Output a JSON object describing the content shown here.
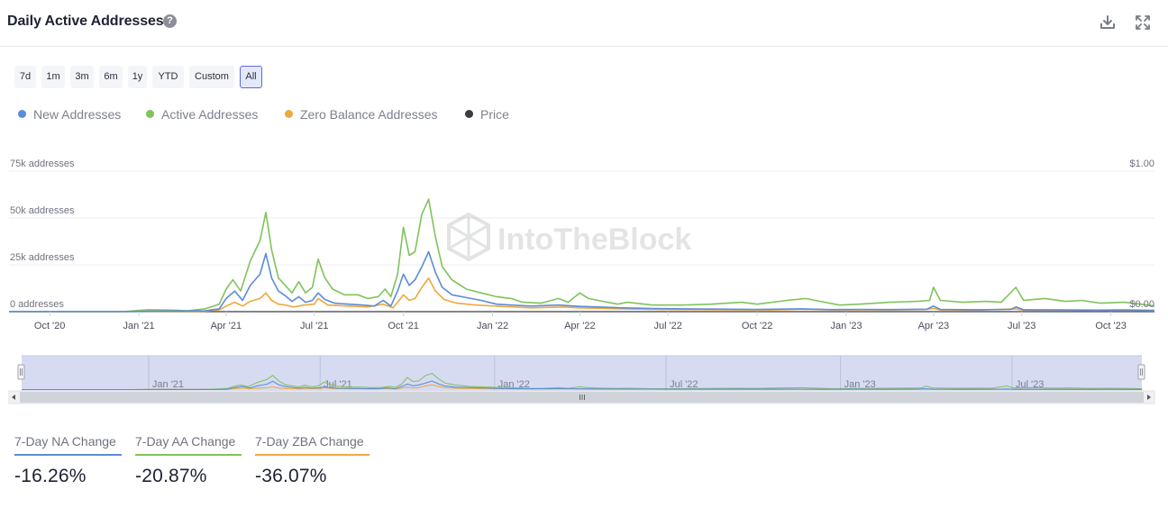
{
  "header": {
    "title": "Daily Active Addresses",
    "help_glyph": "?",
    "download_icon": "download-icon",
    "expand_icon": "expand-icon"
  },
  "range_buttons": [
    {
      "label": "7d",
      "active": false
    },
    {
      "label": "1m",
      "active": false
    },
    {
      "label": "3m",
      "active": false
    },
    {
      "label": "6m",
      "active": false
    },
    {
      "label": "1y",
      "active": false
    },
    {
      "label": "YTD",
      "active": false
    },
    {
      "label": "Custom",
      "active": false
    },
    {
      "label": "All",
      "active": true
    }
  ],
  "legend": [
    {
      "label": "New Addresses",
      "color": "#5b8bd9"
    },
    {
      "label": "Active Addresses",
      "color": "#7fc35a"
    },
    {
      "label": "Zero Balance Addresses",
      "color": "#f0a83c"
    },
    {
      "label": "Price",
      "color": "#3a3c44"
    }
  ],
  "watermark": "IntoTheBlock",
  "chart_data": {
    "type": "line",
    "title": "Daily Active Addresses",
    "y_left_ticks": [
      "0 addresses",
      "25k addresses",
      "50k addresses",
      "75k addresses"
    ],
    "y_left_range": [
      0,
      75000
    ],
    "y_right_ticks": [
      "$0.00",
      "$1.00"
    ],
    "y_right_range": [
      0,
      1
    ],
    "x_range": [
      "2020-08-20",
      "2023-11-15"
    ],
    "x_ticks": [
      {
        "date": "2020-10-01",
        "label": "Oct '20"
      },
      {
        "date": "2021-01-01",
        "label": "Jan '21"
      },
      {
        "date": "2021-04-01",
        "label": "Apr '21"
      },
      {
        "date": "2021-07-01",
        "label": "Jul '21"
      },
      {
        "date": "2021-10-01",
        "label": "Oct '21"
      },
      {
        "date": "2022-01-01",
        "label": "Jan '22"
      },
      {
        "date": "2022-04-01",
        "label": "Apr '22"
      },
      {
        "date": "2022-07-01",
        "label": "Jul '22"
      },
      {
        "date": "2022-10-01",
        "label": "Oct '22"
      },
      {
        "date": "2023-01-01",
        "label": "Jan '23"
      },
      {
        "date": "2023-04-01",
        "label": "Apr '23"
      },
      {
        "date": "2023-07-01",
        "label": "Jul '23"
      },
      {
        "date": "2023-10-01",
        "label": "Oct '23"
      }
    ],
    "grid": true,
    "legend_position": "top-left",
    "series": [
      {
        "name": "New Addresses",
        "color": "#5b8bd9",
        "axis": "left",
        "points": [
          [
            "2020-08-20",
            0
          ],
          [
            "2020-12-15",
            0
          ],
          [
            "2021-01-15",
            200
          ],
          [
            "2021-02-15",
            400
          ],
          [
            "2021-03-10",
            500
          ],
          [
            "2021-03-25",
            1500
          ],
          [
            "2021-04-01",
            7000
          ],
          [
            "2021-04-10",
            11000
          ],
          [
            "2021-04-18",
            6000
          ],
          [
            "2021-04-26",
            14000
          ],
          [
            "2021-05-06",
            20000
          ],
          [
            "2021-05-12",
            31000
          ],
          [
            "2021-05-18",
            18000
          ],
          [
            "2021-05-25",
            11000
          ],
          [
            "2021-06-01",
            8500
          ],
          [
            "2021-06-08",
            5500
          ],
          [
            "2021-06-15",
            8000
          ],
          [
            "2021-06-22",
            5000
          ],
          [
            "2021-06-29",
            6000
          ],
          [
            "2021-07-05",
            10000
          ],
          [
            "2021-07-12",
            6500
          ],
          [
            "2021-07-22",
            4500
          ],
          [
            "2021-08-05",
            4000
          ],
          [
            "2021-08-20",
            3500
          ],
          [
            "2021-09-01",
            3000
          ],
          [
            "2021-09-10",
            6000
          ],
          [
            "2021-09-18",
            3000
          ],
          [
            "2021-09-25",
            11000
          ],
          [
            "2021-10-01",
            20000
          ],
          [
            "2021-10-07",
            14000
          ],
          [
            "2021-10-13",
            17000
          ],
          [
            "2021-10-20",
            24000
          ],
          [
            "2021-10-27",
            32000
          ],
          [
            "2021-11-03",
            21000
          ],
          [
            "2021-11-10",
            13000
          ],
          [
            "2021-11-20",
            9000
          ],
          [
            "2021-12-05",
            7500
          ],
          [
            "2021-12-20",
            6000
          ],
          [
            "2022-01-05",
            4000
          ],
          [
            "2022-01-20",
            3500
          ],
          [
            "2022-02-10",
            3000
          ],
          [
            "2022-03-10",
            3500
          ],
          [
            "2022-04-01",
            2800
          ],
          [
            "2022-04-20",
            2500
          ],
          [
            "2022-05-15",
            2000
          ],
          [
            "2022-06-15",
            1700
          ],
          [
            "2022-07-15",
            1500
          ],
          [
            "2022-09-01",
            1300
          ],
          [
            "2022-10-01",
            1200
          ],
          [
            "2022-11-15",
            1500
          ],
          [
            "2022-12-15",
            1100
          ],
          [
            "2023-01-15",
            1200
          ],
          [
            "2023-02-15",
            1100
          ],
          [
            "2023-03-25",
            1300
          ],
          [
            "2023-04-01",
            3000
          ],
          [
            "2023-04-08",
            1200
          ],
          [
            "2023-05-15",
            1000
          ],
          [
            "2023-06-20",
            1200
          ],
          [
            "2023-06-25",
            2500
          ],
          [
            "2023-07-03",
            1000
          ],
          [
            "2023-08-15",
            900
          ],
          [
            "2023-09-15",
            800
          ],
          [
            "2023-10-15",
            900
          ],
          [
            "2023-11-15",
            700
          ]
        ]
      },
      {
        "name": "Active Addresses",
        "color": "#7fc35a",
        "axis": "left",
        "points": [
          [
            "2020-08-20",
            0
          ],
          [
            "2020-12-15",
            0
          ],
          [
            "2021-01-10",
            1000
          ],
          [
            "2021-02-05",
            800
          ],
          [
            "2021-02-20",
            500
          ],
          [
            "2021-03-10",
            1500
          ],
          [
            "2021-03-25",
            4000
          ],
          [
            "2021-04-01",
            12000
          ],
          [
            "2021-04-08",
            17000
          ],
          [
            "2021-04-16",
            11000
          ],
          [
            "2021-04-26",
            27000
          ],
          [
            "2021-05-06",
            38000
          ],
          [
            "2021-05-12",
            53000
          ],
          [
            "2021-05-18",
            33000
          ],
          [
            "2021-05-25",
            18000
          ],
          [
            "2021-06-01",
            14000
          ],
          [
            "2021-06-08",
            10000
          ],
          [
            "2021-06-15",
            16000
          ],
          [
            "2021-06-22",
            10000
          ],
          [
            "2021-06-29",
            13000
          ],
          [
            "2021-07-05",
            28000
          ],
          [
            "2021-07-12",
            18000
          ],
          [
            "2021-07-20",
            12000
          ],
          [
            "2021-08-01",
            9000
          ],
          [
            "2021-08-15",
            9000
          ],
          [
            "2021-08-25",
            7000
          ],
          [
            "2021-09-05",
            8000
          ],
          [
            "2021-09-12",
            12000
          ],
          [
            "2021-09-18",
            8000
          ],
          [
            "2021-09-25",
            20000
          ],
          [
            "2021-10-01",
            45000
          ],
          [
            "2021-10-07",
            30000
          ],
          [
            "2021-10-13",
            32000
          ],
          [
            "2021-10-20",
            52000
          ],
          [
            "2021-10-27",
            60000
          ],
          [
            "2021-11-03",
            40000
          ],
          [
            "2021-11-10",
            24000
          ],
          [
            "2021-11-20",
            17000
          ],
          [
            "2021-12-05",
            12000
          ],
          [
            "2021-12-20",
            10000
          ],
          [
            "2022-01-05",
            8000
          ],
          [
            "2022-01-20",
            7000
          ],
          [
            "2022-02-01",
            5000
          ],
          [
            "2022-02-20",
            4500
          ],
          [
            "2022-03-10",
            7000
          ],
          [
            "2022-03-20",
            5000
          ],
          [
            "2022-04-01",
            10000
          ],
          [
            "2022-04-10",
            7000
          ],
          [
            "2022-04-25",
            5500
          ],
          [
            "2022-05-10",
            4000
          ],
          [
            "2022-05-20",
            5000
          ],
          [
            "2022-06-15",
            3500
          ],
          [
            "2022-07-15",
            3500
          ],
          [
            "2022-08-15",
            4000
          ],
          [
            "2022-09-15",
            5000
          ],
          [
            "2022-10-01",
            4000
          ],
          [
            "2022-11-01",
            6000
          ],
          [
            "2022-11-20",
            7000
          ],
          [
            "2022-12-10",
            5000
          ],
          [
            "2022-12-25",
            3500
          ],
          [
            "2023-01-15",
            4000
          ],
          [
            "2023-02-15",
            5000
          ],
          [
            "2023-03-15",
            5500
          ],
          [
            "2023-03-28",
            6000
          ],
          [
            "2023-04-01",
            13000
          ],
          [
            "2023-04-08",
            6000
          ],
          [
            "2023-05-01",
            5000
          ],
          [
            "2023-05-25",
            5500
          ],
          [
            "2023-06-10",
            5000
          ],
          [
            "2023-06-25",
            13000
          ],
          [
            "2023-07-03",
            6000
          ],
          [
            "2023-07-25",
            7000
          ],
          [
            "2023-08-15",
            5500
          ],
          [
            "2023-09-01",
            6000
          ],
          [
            "2023-09-20",
            4500
          ],
          [
            "2023-10-15",
            5000
          ],
          [
            "2023-11-01",
            4000
          ],
          [
            "2023-11-15",
            3000
          ]
        ]
      },
      {
        "name": "Zero Balance Addresses",
        "color": "#f0a83c",
        "axis": "left",
        "points": [
          [
            "2020-08-20",
            0
          ],
          [
            "2020-12-15",
            0
          ],
          [
            "2021-01-15",
            200
          ],
          [
            "2021-03-10",
            300
          ],
          [
            "2021-03-25",
            1000
          ],
          [
            "2021-04-01",
            3000
          ],
          [
            "2021-04-10",
            5000
          ],
          [
            "2021-04-18",
            3000
          ],
          [
            "2021-04-26",
            5500
          ],
          [
            "2021-05-06",
            7000
          ],
          [
            "2021-05-12",
            10000
          ],
          [
            "2021-05-18",
            6000
          ],
          [
            "2021-05-25",
            4000
          ],
          [
            "2021-06-01",
            3500
          ],
          [
            "2021-06-10",
            2500
          ],
          [
            "2021-06-20",
            3500
          ],
          [
            "2021-07-01",
            4000
          ],
          [
            "2021-07-05",
            7000
          ],
          [
            "2021-07-15",
            3500
          ],
          [
            "2021-08-05",
            3000
          ],
          [
            "2021-08-25",
            2500
          ],
          [
            "2021-09-10",
            4000
          ],
          [
            "2021-09-20",
            2000
          ],
          [
            "2021-09-25",
            5000
          ],
          [
            "2021-10-01",
            9000
          ],
          [
            "2021-10-07",
            6000
          ],
          [
            "2021-10-13",
            7000
          ],
          [
            "2021-10-20",
            13000
          ],
          [
            "2021-10-27",
            18000
          ],
          [
            "2021-11-03",
            11000
          ],
          [
            "2021-11-12",
            6500
          ],
          [
            "2021-11-25",
            4500
          ],
          [
            "2021-12-15",
            3500
          ],
          [
            "2022-01-10",
            2800
          ],
          [
            "2022-02-10",
            2000
          ],
          [
            "2022-03-15",
            2500
          ],
          [
            "2022-04-01",
            2000
          ],
          [
            "2022-05-15",
            1500
          ],
          [
            "2022-06-15",
            1200
          ],
          [
            "2022-07-15",
            1100
          ],
          [
            "2022-09-15",
            1000
          ],
          [
            "2022-10-15",
            900
          ],
          [
            "2022-11-20",
            1300
          ],
          [
            "2022-12-20",
            900
          ],
          [
            "2023-01-15",
            1000
          ],
          [
            "2023-02-15",
            900
          ],
          [
            "2023-03-25",
            1200
          ],
          [
            "2023-04-01",
            1800
          ],
          [
            "2023-04-08",
            900
          ],
          [
            "2023-05-15",
            800
          ],
          [
            "2023-06-25",
            1500
          ],
          [
            "2023-07-03",
            800
          ],
          [
            "2023-08-15",
            700
          ],
          [
            "2023-09-15",
            600
          ],
          [
            "2023-10-15",
            700
          ],
          [
            "2023-11-15",
            500
          ]
        ]
      },
      {
        "name": "Price",
        "color": "#3a3c44",
        "axis": "right",
        "points": [
          [
            "2020-08-20",
            0
          ],
          [
            "2023-11-15",
            0
          ]
        ]
      }
    ]
  },
  "navigator": {
    "x_range": [
      "2020-08-20",
      "2023-11-15"
    ],
    "x_ticks": [
      {
        "date": "2021-01-01",
        "label": "Jan '21"
      },
      {
        "date": "2021-07-01",
        "label": "Jul '21"
      },
      {
        "date": "2022-01-01",
        "label": "Jan '22"
      },
      {
        "date": "2022-07-01",
        "label": "Jul '22"
      },
      {
        "date": "2023-01-01",
        "label": "Jan '23"
      },
      {
        "date": "2023-07-01",
        "label": "Jul '23"
      }
    ]
  },
  "stats": [
    {
      "label": "7-Day NA Change",
      "value": "-16.26%",
      "color": "#5b8bd9"
    },
    {
      "label": "7-Day AA Change",
      "value": "-20.87%",
      "color": "#7fc35a"
    },
    {
      "label": "7-Day ZBA Change",
      "value": "-36.07%",
      "color": "#f0a83c"
    }
  ]
}
